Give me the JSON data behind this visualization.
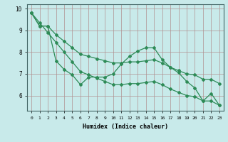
{
  "xlabel": "Humidex (Indice chaleur)",
  "x_all": [
    0,
    1,
    2,
    3,
    4,
    5,
    6,
    7,
    8,
    9,
    10,
    11,
    12,
    13,
    14,
    15,
    16,
    17,
    18,
    19,
    20,
    21,
    22,
    23
  ],
  "line_straight_x": [
    0,
    1,
    2,
    3,
    4,
    5,
    6,
    7,
    8,
    9,
    10,
    11,
    12,
    13,
    14,
    15,
    16,
    17,
    18,
    19,
    20,
    21,
    22,
    23
  ],
  "line_straight_y": [
    9.8,
    9.35,
    8.9,
    8.45,
    8.0,
    7.55,
    7.1,
    6.95,
    6.8,
    6.65,
    6.5,
    6.5,
    6.55,
    6.55,
    6.6,
    6.65,
    6.5,
    6.3,
    6.15,
    6.0,
    5.95,
    5.75,
    5.75,
    5.55
  ],
  "line_wavy_x": [
    0,
    1,
    2,
    3,
    4,
    5,
    6,
    7,
    8,
    9,
    10,
    11,
    12,
    13,
    14,
    15,
    16,
    17,
    18,
    19,
    20,
    21,
    22,
    23
  ],
  "line_wavy_y": [
    9.8,
    9.2,
    9.2,
    7.6,
    7.2,
    6.95,
    6.5,
    6.85,
    6.85,
    6.85,
    7.0,
    7.45,
    7.8,
    8.05,
    8.2,
    8.2,
    7.65,
    7.3,
    7.05,
    6.65,
    6.35,
    5.75,
    6.1,
    5.55
  ],
  "line_top_x": [
    0,
    1,
    2,
    3,
    4,
    5,
    6,
    7,
    8,
    9,
    10,
    11,
    12,
    13,
    14,
    15,
    16,
    17,
    18,
    19,
    20,
    21,
    22,
    23
  ],
  "line_top_y": [
    9.8,
    9.2,
    9.2,
    8.8,
    8.5,
    8.2,
    7.9,
    7.8,
    7.7,
    7.6,
    7.5,
    7.5,
    7.55,
    7.55,
    7.6,
    7.65,
    7.5,
    7.3,
    7.15,
    7.0,
    6.95,
    6.75,
    6.75,
    6.55
  ],
  "line_color": "#2e8b57",
  "background_color": "#c8eaea",
  "grid_color": "#b09090",
  "ylim": [
    5.3,
    10.2
  ],
  "xlim": [
    -0.5,
    23.5
  ],
  "yticks": [
    6,
    7,
    8,
    9,
    10
  ],
  "xticks": [
    0,
    1,
    2,
    3,
    4,
    5,
    6,
    7,
    8,
    9,
    10,
    11,
    12,
    13,
    14,
    15,
    16,
    17,
    18,
    19,
    20,
    21,
    22,
    23
  ]
}
